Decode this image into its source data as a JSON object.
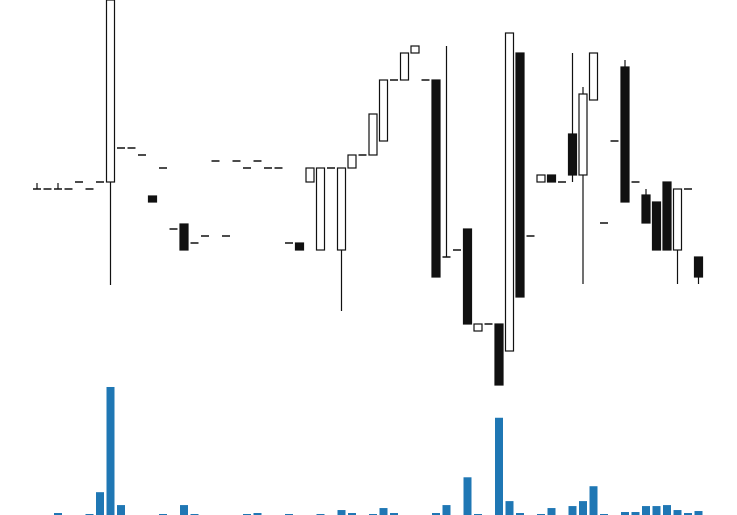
{
  "chart_data": {
    "type": "candlestick",
    "open": [
      211,
      211,
      211,
      211,
      218,
      211,
      218,
      218,
      252,
      252,
      245,
      204,
      232,
      171,
      176,
      157,
      164,
      239,
      164,
      239,
      232,
      239,
      232,
      232,
      157,
      157,
      218,
      150,
      232,
      150,
      232,
      245,
      245,
      259,
      320,
      320,
      347,
      320,
      320,
      143,
      150,
      171,
      69,
      76,
      76,
      49,
      347,
      164,
      218,
      225,
      218,
      266,
      225,
      300,
      177,
      259,
      333,
      218,
      205,
      198,
      218,
      150,
      211,
      143
    ],
    "high": [
      217,
      211,
      217,
      211,
      218,
      211,
      218,
      400,
      252,
      252,
      245,
      204,
      232,
      171,
      176,
      157,
      164,
      239,
      164,
      239,
      232,
      239,
      232,
      232,
      157,
      157,
      232,
      232,
      232,
      232,
      245,
      245,
      286,
      320,
      320,
      347,
      354,
      320,
      320,
      354,
      150,
      171,
      76,
      76,
      76,
      367,
      347,
      164,
      225,
      225,
      218,
      347,
      313,
      347,
      177,
      259,
      340,
      218,
      211,
      198,
      218,
      211,
      211,
      143
    ],
    "low": [
      211,
      211,
      211,
      211,
      218,
      211,
      218,
      115,
      252,
      252,
      245,
      198,
      232,
      171,
      150,
      157,
      164,
      239,
      164,
      239,
      232,
      239,
      232,
      232,
      157,
      150,
      218,
      150,
      232,
      89,
      232,
      245,
      245,
      259,
      320,
      320,
      347,
      320,
      123,
      143,
      150,
      76,
      69,
      76,
      15,
      49,
      103,
      164,
      218,
      218,
      218,
      218,
      116,
      300,
      177,
      259,
      198,
      218,
      177,
      150,
      150,
      116,
      211,
      116
    ],
    "close": [
      211,
      211,
      211,
      211,
      218,
      211,
      218,
      400,
      252,
      252,
      245,
      198,
      232,
      171,
      150,
      157,
      164,
      239,
      164,
      239,
      232,
      239,
      232,
      232,
      157,
      150,
      232,
      232,
      232,
      232,
      245,
      245,
      286,
      320,
      320,
      347,
      354,
      320,
      123,
      143,
      150,
      76,
      76,
      76,
      15,
      367,
      103,
      164,
      225,
      218,
      218,
      225,
      306,
      347,
      177,
      259,
      198,
      218,
      177,
      150,
      150,
      211,
      211,
      123
    ],
    "volume": [
      0,
      0,
      2,
      0,
      0,
      1,
      23,
      129,
      10,
      0,
      0,
      0,
      1,
      0,
      10,
      1,
      0,
      0,
      0,
      0,
      1,
      2,
      0,
      0,
      1,
      0,
      0,
      1,
      0,
      5,
      2,
      0,
      1,
      7,
      2,
      0,
      0,
      0,
      2,
      10,
      0,
      38,
      1,
      0,
      98,
      14,
      2,
      0,
      1,
      7,
      0,
      9,
      14,
      29,
      1,
      0,
      3,
      3,
      9,
      9,
      10,
      5,
      2,
      4
    ],
    "up_color": "#ffffff",
    "down_color": "#111111",
    "volume_color": "#1f77b4",
    "ylim": [
      0,
      400
    ],
    "volume_lim": [
      0,
      130
    ]
  }
}
